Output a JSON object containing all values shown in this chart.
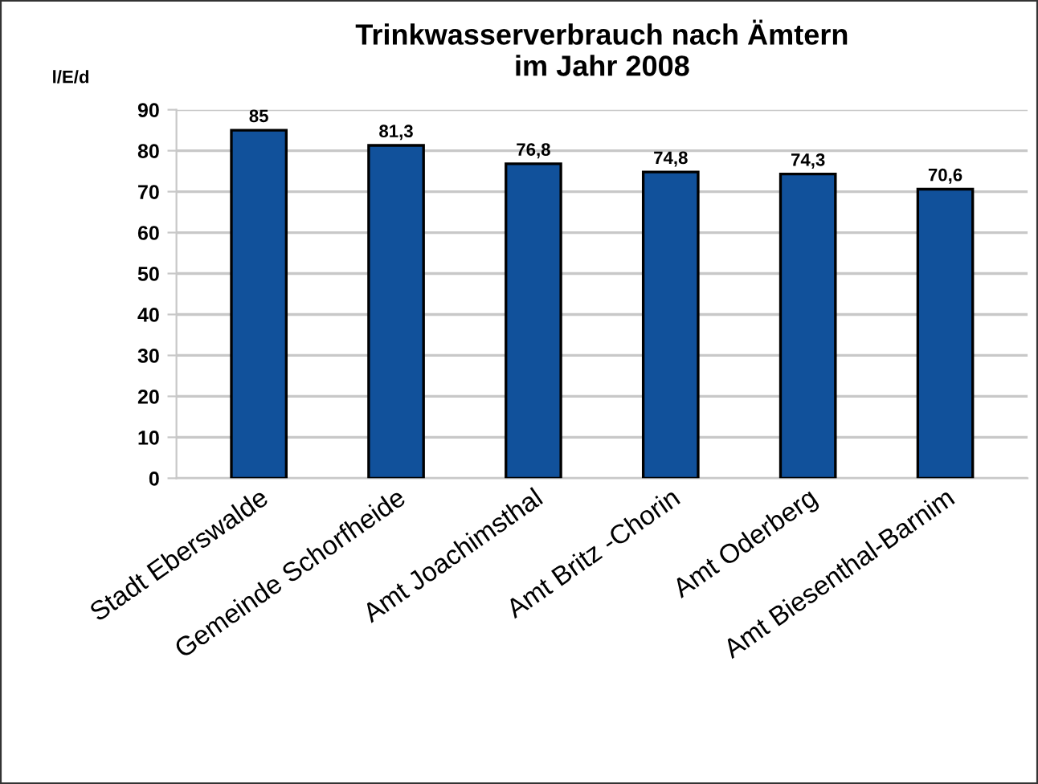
{
  "chart_data": {
    "type": "bar",
    "title": "Trinkwasserverbrauch nach Ämtern\nim Jahr 2008",
    "ylabel": "l/E/d",
    "categories": [
      "Stadt Eberswalde",
      "Gemeinde Schorfheide",
      "Amt Joachimsthal",
      "Amt Britz -Chorin",
      "Amt Oderberg",
      "Amt Biesenthal-Barnim"
    ],
    "values": [
      85,
      81.3,
      76.8,
      74.8,
      74.3,
      70.6
    ],
    "value_labels": [
      "85",
      "81,3",
      "76,8",
      "74,8",
      "74,3",
      "70,6"
    ],
    "color": "#11519b",
    "ylim": [
      0,
      90
    ],
    "yticks": [
      0,
      10,
      20,
      30,
      40,
      50,
      60,
      70,
      80,
      90
    ],
    "grid": "y"
  }
}
